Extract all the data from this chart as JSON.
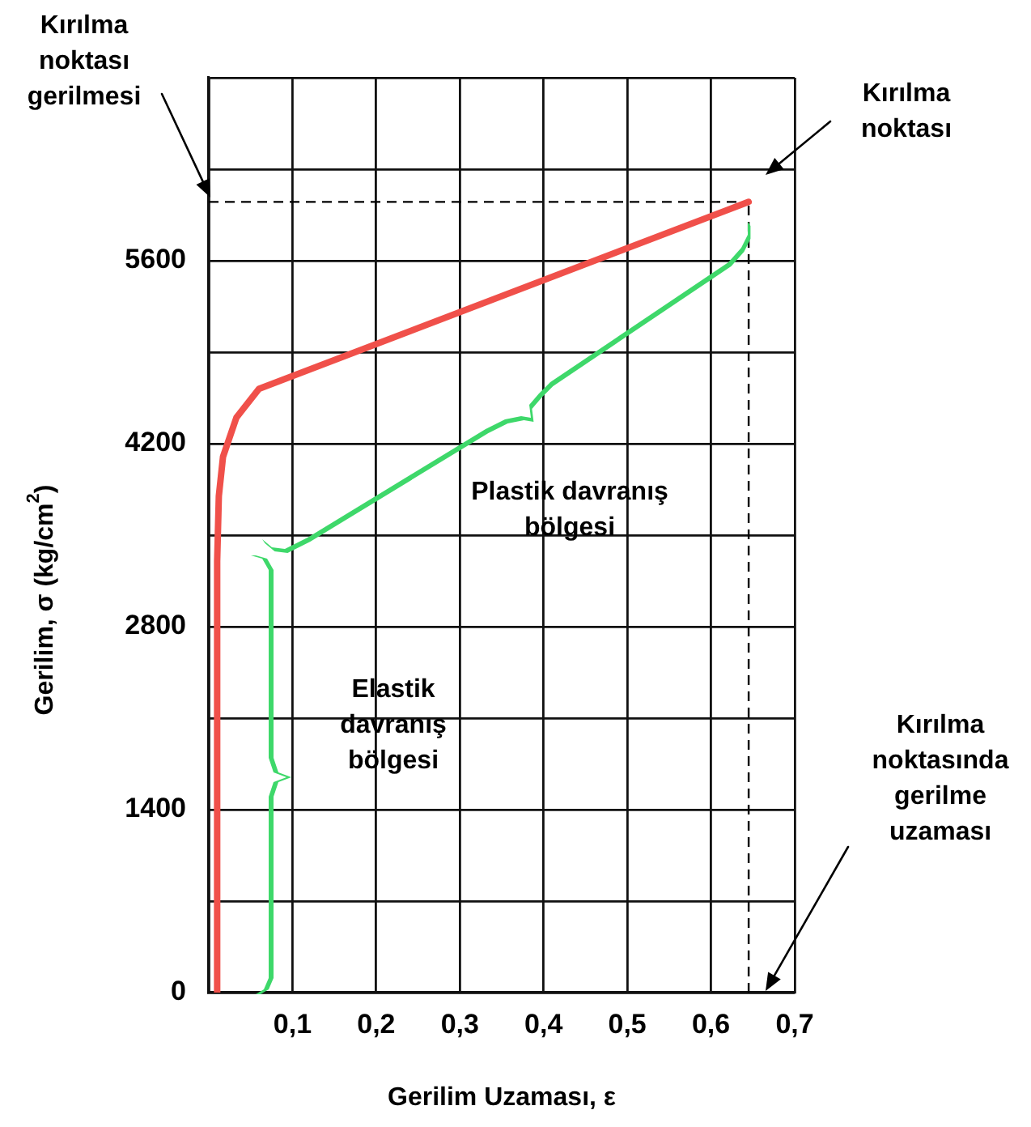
{
  "chart_data": {
    "type": "line",
    "xlabel": "Gerilim Uzaması, ε",
    "ylabel": "Gerilim, σ (kg/cm$^{2}$)",
    "x": [
      0.01,
      0.01,
      0.012,
      0.017,
      0.033,
      0.06,
      0.645
    ],
    "series": [
      {
        "color": "#f0504a",
        "values": [
          0,
          3300,
          3800,
          4100,
          4400,
          4620,
          6050
        ]
      }
    ],
    "xlim": [
      0,
      0.7
    ],
    "xticks": [
      {
        "value": 0,
        "label": null
      },
      {
        "value": 0.1,
        "label": "0,1"
      },
      {
        "value": 0.2,
        "label": "0,2"
      },
      {
        "value": 0.3,
        "label": "0,3"
      },
      {
        "value": 0.4,
        "label": "0,4"
      },
      {
        "value": 0.5,
        "label": "0,5"
      },
      {
        "value": 0.6,
        "label": "0,6"
      },
      {
        "value": 0.7,
        "label": "0,7"
      }
    ],
    "ylim": [
      0,
      7000
    ],
    "yticks": [
      0,
      {
        "value": 700,
        "label": null
      },
      1400,
      {
        "value": 2100,
        "label": null
      },
      2800,
      {
        "value": 3500,
        "label": null
      },
      4200,
      {
        "value": 4900,
        "label": null
      },
      5600,
      {
        "value": 6300,
        "label": null
      },
      {
        "value": 7000,
        "label": null
      }
    ],
    "grid": true,
    "marker": "none",
    "line_style": "solid",
    "legend": false,
    "ref_lines": [
      {
        "axis": "y",
        "value": 6050,
        "line_style": "dashed",
        "color": "#000000"
      },
      {
        "axis": "x",
        "value": 0.645,
        "line_style": "dashed",
        "color": "#000000"
      }
    ],
    "annotations": [
      "Kırılma noktası gerilmesi",
      "Kırılma noktası",
      "Plastik davranış bölgesi",
      "Elastik davranış bölgesi",
      "Kırılma noktasında gerilme uzaması"
    ]
  }
}
